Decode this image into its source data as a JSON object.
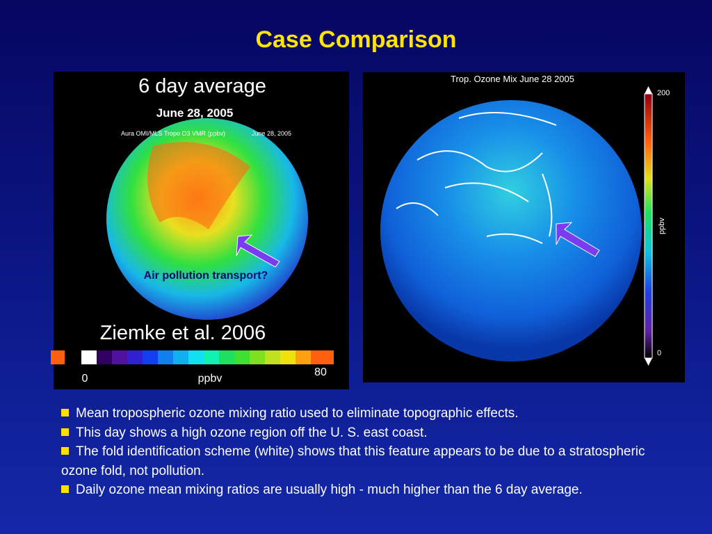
{
  "title": "Case Comparison",
  "left_panel": {
    "heading": "6 day average",
    "date": "June 28, 2005",
    "map_caption": "Aura OMI/MLS Tropo O3 VMR (ppbv)",
    "map_date": "June 28, 2005",
    "annotation": "Air pollution transport?",
    "citation": "Ziemke et al. 2006",
    "colorbar": {
      "min": 0,
      "unit": "ppbv",
      "max": 80
    }
  },
  "right_panel": {
    "heading": "Trop. Ozone Mix June 28  2005",
    "colorbar": {
      "max": 200,
      "unit": "ppbv",
      "min": 0
    }
  },
  "bullets": [
    "Mean tropospheric ozone mixing ratio used to eliminate topographic effects.",
    "This day shows a high ozone region off the U. S. east coast.",
    "The fold identification scheme (white) shows that this feature appears to be due to a stratospheric ozone fold, not pollution.",
    "Daily ozone mean mixing ratios are usually high - much higher than the 6 day average."
  ]
}
